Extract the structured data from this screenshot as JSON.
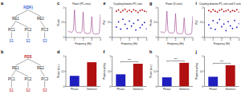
{
  "diagrams": [
    {
      "panel": "a",
      "color": "#1f4fd0",
      "nodes": [
        {
          "label": "F(DF)"
        },
        {
          "label": "RE1"
        },
        {
          "label": "RE2"
        },
        {
          "label": "PC1"
        },
        {
          "label": "PC2"
        },
        {
          "label": "PC3"
        },
        {
          "label": "S1"
        },
        {
          "label": "S2"
        },
        {
          "label": "S3"
        }
      ],
      "edges": [
        [
          0,
          1
        ],
        [
          0,
          2
        ],
        [
          1,
          3
        ],
        [
          1,
          4
        ],
        [
          2,
          5
        ],
        [
          3,
          6
        ],
        [
          4,
          7
        ],
        [
          5,
          8
        ]
      ]
    },
    {
      "panel": "b",
      "color": "#c0141c",
      "nodes": [
        {
          "label": "PDS"
        },
        {
          "label": "RE1"
        },
        {
          "label": "RE2"
        },
        {
          "label": "PC1"
        },
        {
          "label": "PC2"
        },
        {
          "label": "PC3"
        },
        {
          "label": "S1"
        },
        {
          "label": "S2"
        },
        {
          "label": "S3"
        }
      ],
      "edges": [
        [
          0,
          1
        ],
        [
          0,
          2
        ],
        [
          1,
          3
        ],
        [
          1,
          4
        ],
        [
          2,
          5
        ],
        [
          3,
          6
        ],
        [
          4,
          7
        ],
        [
          5,
          8
        ]
      ]
    }
  ],
  "chart_data": [
    {
      "panel": "c",
      "type": "line",
      "title": "Power (PC units)",
      "x_label": "Frequency (Hz)",
      "y_label": "Power",
      "x": [
        0.25,
        0.375,
        0.5,
        0.625,
        0.75,
        0.875,
        1,
        1.125,
        1.25,
        1.375,
        1.5,
        1.625,
        1.75,
        1.875,
        2,
        2.125,
        2.25,
        2.375,
        2.5,
        2.625,
        2.75,
        2.875,
        3,
        3.125,
        3.25,
        3.375,
        3.5,
        3.625,
        3.75,
        3.875,
        4
      ],
      "series": [
        {
          "color": "#9b3d8a",
          "values": [
            0.22,
            0.18,
            0.2,
            0.16,
            0.19,
            0.25,
            0.92,
            0.24,
            0.17,
            0.15,
            0.18,
            0.14,
            0.16,
            0.22,
            0.85,
            0.2,
            0.13,
            0.15,
            0.12,
            0.14,
            0.13,
            0.19,
            0.7,
            0.17,
            0.11,
            0.12,
            0.1,
            0.13,
            0.11,
            0.16,
            0.78
          ]
        }
      ],
      "xlim": [
        0,
        4
      ],
      "xticks": [
        0,
        1,
        2,
        3,
        4
      ],
      "ylim": [
        0,
        1
      ],
      "yticks": [
        0,
        0.5,
        1
      ],
      "grid": false
    },
    {
      "panel": "d",
      "type": "bar",
      "y_label": "Power (a.u.)",
      "categories": [
        "Phrase",
        "Sentence"
      ],
      "values": [
        0.35,
        0.8
      ],
      "colors": [
        "#1f1fbf",
        "#b01010"
      ],
      "ylim": [
        0,
        1
      ],
      "yticks": [
        0,
        0.5,
        1
      ],
      "grid": false
    },
    {
      "panel": "e",
      "type": "scatter",
      "title": "Coupling between PC units",
      "x_label": "Frequency (Hz)",
      "y_label": "PLV",
      "x": [
        0.5,
        0.75,
        1,
        1.25,
        1.5,
        1.75,
        2,
        2.25,
        2.5,
        2.75,
        3,
        3.25,
        3.5,
        3.75,
        4
      ],
      "series": [
        {
          "color": "#1f1fbf",
          "values": [
            0.35,
            0.52,
            0.28,
            0.61,
            0.44,
            0.3,
            0.55,
            0.38,
            0.47,
            0.25,
            0.58,
            0.33,
            0.42,
            0.5,
            0.29
          ]
        },
        {
          "color": "#b01010",
          "values": [
            0.88,
            0.92,
            0.85,
            0.9,
            0.94,
            0.87,
            0.91,
            0.86,
            0.93,
            0.89,
            0.84,
            0.9,
            0.92,
            0.88,
            0.86
          ]
        }
      ],
      "xlim": [
        0,
        4
      ],
      "xticks": [
        0,
        1,
        2,
        3,
        4
      ],
      "ylim": [
        0,
        1
      ],
      "yticks": [
        0,
        0.5,
        1
      ],
      "grid": false
    },
    {
      "panel": "f",
      "type": "bar",
      "y_label": "Phase coupling",
      "annotation": "***",
      "categories": [
        "Phrase",
        "Sentence"
      ],
      "values": [
        0.4,
        0.75
      ],
      "colors": [
        "#1f1fbf",
        "#b01010"
      ],
      "ylim": [
        0,
        1
      ],
      "yticks": [
        0,
        0.5,
        1
      ],
      "grid": false
    },
    {
      "panel": "g",
      "type": "line",
      "title": "Power (S units)",
      "x_label": "Frequency (Hz)",
      "y_label": "Power",
      "x": [
        0.25,
        0.375,
        0.5,
        0.625,
        0.75,
        0.875,
        1,
        1.125,
        1.25,
        1.375,
        1.5,
        1.625,
        1.75,
        1.875,
        2,
        2.125,
        2.25,
        2.375,
        2.5,
        2.625,
        2.75,
        2.875,
        3,
        3.125,
        3.25,
        3.375,
        3.5,
        3.625,
        3.75,
        3.875,
        4
      ],
      "series": [
        {
          "color": "#9b3d8a",
          "values": [
            0.2,
            0.17,
            0.19,
            0.15,
            0.18,
            0.23,
            0.88,
            0.22,
            0.16,
            0.14,
            0.17,
            0.13,
            0.15,
            0.21,
            0.8,
            0.19,
            0.12,
            0.14,
            0.11,
            0.13,
            0.12,
            0.18,
            0.66,
            0.16,
            0.1,
            0.11,
            0.09,
            0.12,
            0.1,
            0.15,
            0.72
          ]
        }
      ],
      "xlim": [
        0,
        4
      ],
      "xticks": [
        0,
        1,
        2,
        3,
        4
      ],
      "ylim": [
        0,
        1
      ],
      "yticks": [
        0,
        0.5,
        1
      ],
      "grid": false
    },
    {
      "panel": "h",
      "type": "bar",
      "y_label": "Power (a.u.)",
      "annotation": "***",
      "categories": [
        "Phrase",
        "Sentence"
      ],
      "values": [
        0.3,
        0.78
      ],
      "colors": [
        "#1f1fbf",
        "#b01010"
      ],
      "ylim": [
        0,
        1
      ],
      "yticks": [
        0,
        0.5,
        1
      ],
      "grid": false
    },
    {
      "panel": "i",
      "type": "scatter",
      "title": "Coupling between PC units and S units",
      "x_label": "Frequency (Hz)",
      "y_label": "PLV",
      "x": [
        0.5,
        0.75,
        1,
        1.25,
        1.5,
        1.75,
        2,
        2.25,
        2.5,
        2.75,
        3,
        3.25,
        3.5,
        3.75,
        4
      ],
      "series": [
        {
          "color": "#1f1fbf",
          "values": [
            0.42,
            0.31,
            0.56,
            0.27,
            0.49,
            0.6,
            0.36,
            0.45,
            0.23,
            0.53,
            0.39,
            0.3,
            0.57,
            0.34,
            0.46
          ]
        },
        {
          "color": "#b01010",
          "values": [
            0.9,
            0.86,
            0.93,
            0.88,
            0.85,
            0.91,
            0.94,
            0.87,
            0.89,
            0.92,
            0.86,
            0.9,
            0.88,
            0.93,
            0.85
          ]
        }
      ],
      "xlim": [
        0,
        4
      ],
      "xticks": [
        0,
        1,
        2,
        3,
        4
      ],
      "ylim": [
        0,
        1
      ],
      "yticks": [
        0,
        0.5,
        1
      ],
      "grid": false
    },
    {
      "panel": "j",
      "type": "bar",
      "y_label": "Phase coupling",
      "annotation": "***",
      "categories": [
        "Phrase",
        "Sentence"
      ],
      "values": [
        0.32,
        0.7
      ],
      "colors": [
        "#1f1fbf",
        "#b01010"
      ],
      "ylim": [
        0,
        1
      ],
      "yticks": [
        0,
        0.5,
        1
      ],
      "grid": false
    }
  ]
}
